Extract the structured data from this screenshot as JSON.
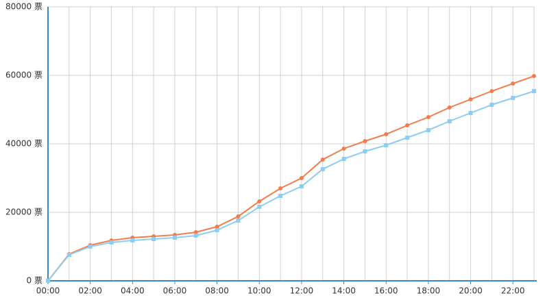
{
  "chart_data": {
    "type": "line",
    "categories": [
      "00:00",
      null,
      "02:00",
      null,
      "04:00",
      null,
      "06:00",
      null,
      "08:00",
      null,
      "10:00",
      null,
      "12:00",
      null,
      "14:00",
      null,
      "16:00",
      null,
      "18:00",
      null,
      "20:00",
      null,
      "22:00",
      null
    ],
    "series": [
      {
        "color": "#f47c4c",
        "marker": "circle",
        "values": [
          0,
          7800,
          10400,
          11800,
          12600,
          13000,
          13400,
          14200,
          15800,
          18800,
          23200,
          27000,
          30000,
          35400,
          38600,
          40800,
          42800,
          45400,
          47800,
          50600,
          53000,
          55400,
          57600,
          59800
        ]
      },
      {
        "color": "#8ccdf2",
        "marker": "square",
        "values": [
          0,
          7600,
          10000,
          11200,
          11800,
          12200,
          12600,
          13200,
          14800,
          17600,
          21600,
          24800,
          27600,
          32600,
          35600,
          37800,
          39600,
          41800,
          44000,
          46600,
          49000,
          51400,
          53400,
          55400
        ]
      }
    ],
    "ylim": [
      0,
      80000
    ],
    "yticks": [
      {
        "value": 0,
        "label": "0 票"
      },
      {
        "value": 20000,
        "label": "20000 票"
      },
      {
        "value": 40000,
        "label": "40000 票"
      },
      {
        "value": 60000,
        "label": "60000 票"
      },
      {
        "value": 80000,
        "label": "80000 票"
      }
    ],
    "grid": true
  }
}
